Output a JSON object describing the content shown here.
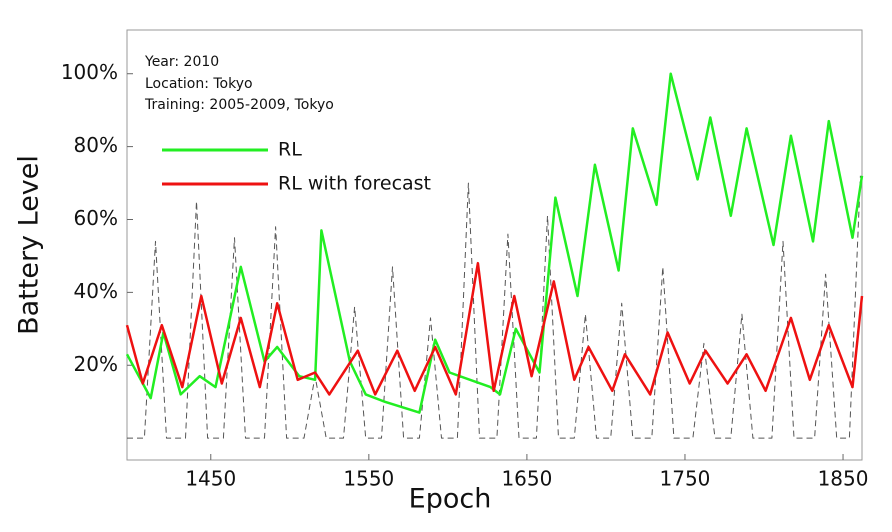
{
  "chart_data": {
    "type": "line",
    "annotations": [
      "Year: 2010",
      "Location: Tokyo",
      "Training: 2005-2009, Tokyo"
    ],
    "y_label": "Battery Level",
    "x_label": "Epoch",
    "xlim": [
      1397,
      1862
    ],
    "xticks": [
      1450,
      1550,
      1650,
      1750,
      1850
    ],
    "ylim": [
      -6,
      112
    ],
    "yticks": [
      {
        "value": 20,
        "label": "20%"
      },
      {
        "value": 40,
        "label": "40%"
      },
      {
        "value": 60,
        "label": "60%"
      },
      {
        "value": 80,
        "label": "80%"
      },
      {
        "value": 100,
        "label": "100%"
      }
    ],
    "grid": false,
    "series": [
      {
        "color": "#555555",
        "dashed": true,
        "x": [
          1397,
          1408,
          1415,
          1422,
          1434,
          1441,
          1448,
          1458,
          1465,
          1472,
          1484,
          1491,
          1498,
          1509,
          1516,
          1523,
          1534,
          1541,
          1548,
          1558,
          1565,
          1572,
          1582,
          1589,
          1596,
          1606,
          1613,
          1620,
          1631,
          1638,
          1645,
          1656,
          1663,
          1670,
          1680,
          1687,
          1694,
          1703,
          1710,
          1717,
          1729,
          1736,
          1743,
          1755,
          1762,
          1769,
          1779,
          1786,
          1793,
          1805,
          1812,
          1819,
          1832,
          1839,
          1846,
          1854,
          1861
        ],
        "values": [
          0,
          0,
          54,
          0,
          0,
          65,
          0,
          0,
          55,
          0,
          0,
          58,
          0,
          0,
          17,
          0,
          0,
          36,
          0,
          0,
          47,
          0,
          0,
          33,
          0,
          0,
          70,
          0,
          0,
          56,
          0,
          0,
          61,
          0,
          0,
          34,
          0,
          0,
          37,
          0,
          0,
          47,
          0,
          0,
          26,
          0,
          0,
          34,
          0,
          0,
          54,
          0,
          0,
          45,
          0,
          0,
          72
        ]
      },
      {
        "name": "RL",
        "color": "#22ee22",
        "x": [
          1397,
          1412,
          1420,
          1431,
          1443,
          1453,
          1469,
          1484,
          1492,
          1506,
          1516,
          1520,
          1538,
          1548,
          1560,
          1582,
          1592,
          1601,
          1627,
          1633,
          1643,
          1658,
          1668,
          1682,
          1693,
          1708,
          1717,
          1732,
          1741,
          1758,
          1766,
          1779,
          1789,
          1806,
          1817,
          1831,
          1841,
          1856,
          1862
        ],
        "values": [
          23,
          11,
          29,
          12,
          17,
          14,
          47,
          21,
          25,
          17,
          16,
          57,
          21,
          12,
          10,
          7,
          27,
          18,
          14,
          12,
          30,
          18,
          66,
          39,
          75,
          46,
          85,
          64,
          100,
          71,
          88,
          61,
          85,
          53,
          83,
          54,
          87,
          55,
          72
        ]
      },
      {
        "name": "RL with forecast",
        "color": "#ee1111",
        "x": [
          1397,
          1407,
          1419,
          1432,
          1444,
          1457,
          1469,
          1481,
          1492,
          1505,
          1516,
          1525,
          1543,
          1554,
          1568,
          1579,
          1592,
          1605,
          1619,
          1629,
          1642,
          1653,
          1667,
          1680,
          1689,
          1704,
          1712,
          1728,
          1739,
          1753,
          1763,
          1777,
          1789,
          1801,
          1817,
          1829,
          1841,
          1856,
          1862
        ],
        "values": [
          31,
          15,
          31,
          14,
          39,
          15,
          33,
          14,
          37,
          16,
          18,
          12,
          24,
          12,
          24,
          13,
          25,
          12,
          48,
          13,
          39,
          17,
          43,
          16,
          25,
          13,
          23,
          12,
          29,
          15,
          24,
          15,
          23,
          13,
          33,
          16,
          31,
          14,
          39
        ]
      }
    ]
  }
}
